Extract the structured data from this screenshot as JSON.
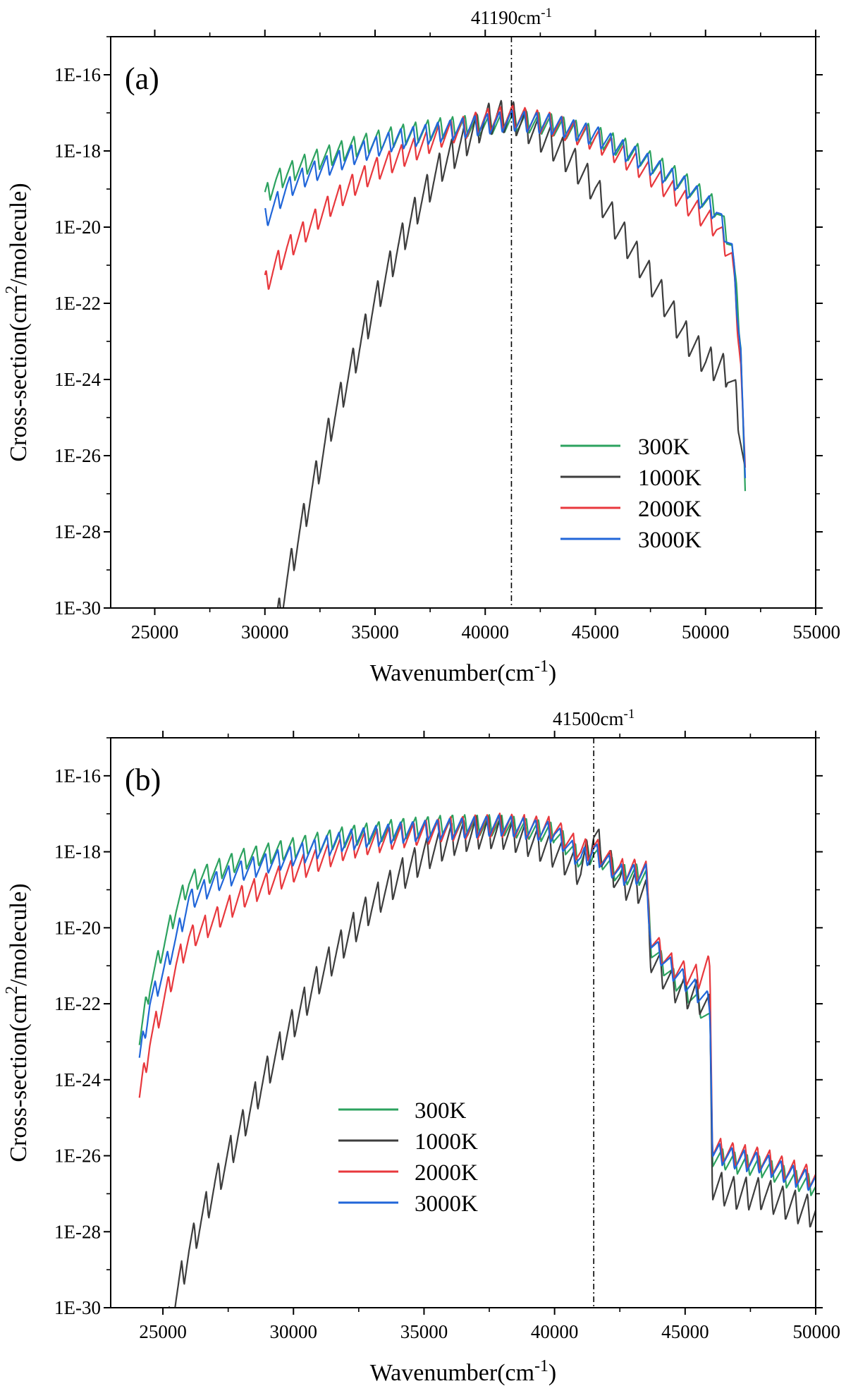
{
  "chart_data": [
    {
      "type": "line",
      "panel_label": "(a)",
      "xlabel": "Wavenumber(cm",
      "xlabel_sup": "-1",
      "xlabel_end": ")",
      "ylabel": "Cross-section(cm",
      "ylabel_sup": "2",
      "ylabel_end": "/molecule)",
      "xlim": [
        23000,
        55000
      ],
      "ylim_log10": [
        -30,
        -15
      ],
      "xticks": [
        25000,
        30000,
        35000,
        40000,
        45000,
        50000,
        55000
      ],
      "xtick_labels": [
        "25000",
        "30000",
        "35000",
        "40000",
        "45000",
        "50000",
        "55000"
      ],
      "yticks_log10": [
        -30,
        -28,
        -26,
        -24,
        -22,
        -20,
        -18,
        -16
      ],
      "ytick_labels": [
        "1E-30",
        "1E-28",
        "1E-26",
        "1E-24",
        "1E-22",
        "1E-20",
        "1E-18",
        "1E-16"
      ],
      "annotation": {
        "text": "41190cm",
        "sup": "-1",
        "x": 41190
      },
      "legend_position": "lower-right",
      "series": [
        {
          "name": "300K",
          "color": "#2ca25f",
          "period": 560,
          "amp": 0.35,
          "x": [
            30000,
            30500,
            31000,
            32000,
            34000,
            36000,
            38000,
            40000,
            41190,
            43000,
            45000,
            47000,
            49000,
            50500,
            51200,
            51600,
            51800
          ],
          "log10y": [
            -19.2,
            -18.8,
            -18.6,
            -18.3,
            -17.9,
            -17.6,
            -17.4,
            -17.3,
            -17.2,
            -17.3,
            -17.6,
            -18.1,
            -18.8,
            -19.5,
            -20.5,
            -23.0,
            -27.0
          ]
        },
        {
          "name": "1000K",
          "color": "#3d3d3d",
          "period": 560,
          "amp": 0.55,
          "x": [
            30500,
            31000,
            31500,
            32000,
            33000,
            34000,
            35000,
            36000,
            37000,
            38000,
            39000,
            40000,
            40500,
            41190,
            42000,
            43000,
            44000,
            45000,
            46000,
            47000,
            48000,
            49000,
            50000,
            51000,
            51400,
            51800
          ],
          "log10y": [
            -30.5,
            -29.3,
            -28.2,
            -27.2,
            -25.2,
            -23.6,
            -22.0,
            -20.6,
            -19.4,
            -18.4,
            -17.8,
            -17.2,
            -17.1,
            -17.1,
            -17.4,
            -17.8,
            -18.3,
            -19.0,
            -20.0,
            -20.9,
            -21.8,
            -22.8,
            -23.5,
            -23.8,
            -24.5,
            -26.5
          ]
        },
        {
          "name": "2000K",
          "color": "#e8383d",
          "period": 560,
          "amp": 0.4,
          "x": [
            30000,
            30500,
            31000,
            32000,
            33000,
            34000,
            35000,
            36000,
            37000,
            38000,
            39000,
            40000,
            41190,
            43000,
            45000,
            47000,
            49000,
            50500,
            51200,
            51600,
            51800
          ],
          "log10y": [
            -21.5,
            -21.0,
            -20.6,
            -20.0,
            -19.4,
            -18.9,
            -18.5,
            -18.2,
            -17.9,
            -17.6,
            -17.4,
            -17.2,
            -17.1,
            -17.3,
            -17.7,
            -18.4,
            -19.3,
            -20.0,
            -20.8,
            -23.5,
            -26.5
          ]
        },
        {
          "name": "3000K",
          "color": "#2166d9",
          "period": 560,
          "amp": 0.35,
          "x": [
            30000,
            30500,
            31000,
            32000,
            34000,
            36000,
            38000,
            40000,
            41190,
            43000,
            45000,
            47000,
            49000,
            50500,
            51200,
            51600,
            51800
          ],
          "log10y": [
            -19.8,
            -19.4,
            -19.0,
            -18.6,
            -18.1,
            -17.7,
            -17.5,
            -17.3,
            -17.2,
            -17.3,
            -17.6,
            -18.2,
            -18.9,
            -19.6,
            -20.6,
            -23.2,
            -26.8
          ]
        }
      ]
    },
    {
      "type": "line",
      "panel_label": "(b)",
      "xlabel": "Wavenumber(cm",
      "xlabel_sup": "-1",
      "xlabel_end": ")",
      "ylabel": "Cross-section(cm",
      "ylabel_sup": "2",
      "ylabel_end": "/molecule)",
      "xlim": [
        23000,
        50000
      ],
      "ylim_log10": [
        -30,
        -15
      ],
      "xticks": [
        25000,
        30000,
        35000,
        40000,
        45000,
        50000
      ],
      "xtick_labels": [
        "25000",
        "30000",
        "35000",
        "40000",
        "45000",
        "50000"
      ],
      "yticks_log10": [
        -30,
        -28,
        -26,
        -24,
        -22,
        -20,
        -18,
        -16
      ],
      "ytick_labels": [
        "1E-30",
        "1E-28",
        "1E-26",
        "1E-24",
        "1E-22",
        "1E-20",
        "1E-18",
        "1E-16"
      ],
      "annotation": {
        "text": "41500cm",
        "sup": "-1",
        "x": 41500
      },
      "legend_position": "lower-left",
      "series": [
        {
          "name": "300K",
          "color": "#2ca25f",
          "period": 470,
          "amp": 0.35,
          "x": [
            24100,
            24500,
            25000,
            25500,
            26000,
            27000,
            28000,
            30000,
            32000,
            34000,
            36000,
            38000,
            40000,
            41000,
            41500,
            42500,
            43500,
            43700,
            44500,
            45000,
            45500,
            45950,
            46050,
            47000,
            48000,
            49000,
            50000
          ],
          "log10y": [
            -23.0,
            -21.5,
            -20.5,
            -19.5,
            -18.8,
            -18.5,
            -18.2,
            -17.9,
            -17.6,
            -17.4,
            -17.3,
            -17.3,
            -17.5,
            -18.2,
            -18.0,
            -18.6,
            -18.6,
            -20.5,
            -21.3,
            -21.6,
            -22.0,
            -22.5,
            -26.0,
            -26.2,
            -26.3,
            -26.6,
            -26.8
          ]
        },
        {
          "name": "1000K",
          "color": "#3d3d3d",
          "period": 470,
          "amp": 0.55,
          "x": [
            25200,
            26000,
            27000,
            28000,
            29000,
            30000,
            31000,
            32000,
            33000,
            34000,
            35000,
            36000,
            37000,
            38000,
            39000,
            40000,
            41000,
            41500,
            42500,
            43500,
            43700,
            44500,
            45000,
            45500,
            45950,
            46050,
            47000,
            48000,
            49000,
            50000
          ],
          "log10y": [
            -30.5,
            -28.5,
            -26.8,
            -25.3,
            -23.8,
            -22.5,
            -21.3,
            -20.3,
            -19.4,
            -18.7,
            -18.1,
            -17.7,
            -17.5,
            -17.5,
            -17.7,
            -18.0,
            -18.5,
            -17.6,
            -18.8,
            -19.0,
            -20.8,
            -21.5,
            -21.7,
            -21.8,
            -22.2,
            -26.8,
            -27.0,
            -27.0,
            -27.3,
            -27.5
          ]
        },
        {
          "name": "2000K",
          "color": "#e8383d",
          "period": 470,
          "amp": 0.4,
          "x": [
            24100,
            24500,
            25000,
            25500,
            26000,
            27000,
            28000,
            30000,
            32000,
            34000,
            36000,
            38000,
            40000,
            41000,
            41500,
            42500,
            43500,
            43700,
            44500,
            45000,
            45500,
            45950,
            46050,
            47000,
            48000,
            49000,
            50000
          ],
          "log10y": [
            -24.5,
            -23.0,
            -22.0,
            -21.0,
            -20.3,
            -19.8,
            -19.2,
            -18.5,
            -17.9,
            -17.6,
            -17.4,
            -17.3,
            -17.4,
            -18.0,
            -17.9,
            -18.5,
            -18.5,
            -20.3,
            -21.0,
            -21.2,
            -21.3,
            -21.0,
            -25.8,
            -26.0,
            -26.1,
            -26.4,
            -26.6
          ]
        },
        {
          "name": "3000K",
          "color": "#2166d9",
          "period": 470,
          "amp": 0.35,
          "x": [
            24100,
            24500,
            25000,
            25500,
            26000,
            27000,
            28000,
            30000,
            32000,
            34000,
            36000,
            38000,
            40000,
            41000,
            41500,
            42500,
            43500,
            43700,
            44500,
            45000,
            45500,
            45950,
            46050,
            47000,
            48000,
            49000,
            50000
          ],
          "log10y": [
            -23.5,
            -22.0,
            -21.2,
            -20.3,
            -19.3,
            -18.8,
            -18.5,
            -18.1,
            -17.7,
            -17.5,
            -17.4,
            -17.3,
            -17.5,
            -18.2,
            -18.0,
            -18.6,
            -18.6,
            -20.4,
            -21.1,
            -21.4,
            -21.7,
            -22.0,
            -25.9,
            -26.1,
            -26.2,
            -26.5,
            -26.7
          ]
        }
      ]
    }
  ]
}
